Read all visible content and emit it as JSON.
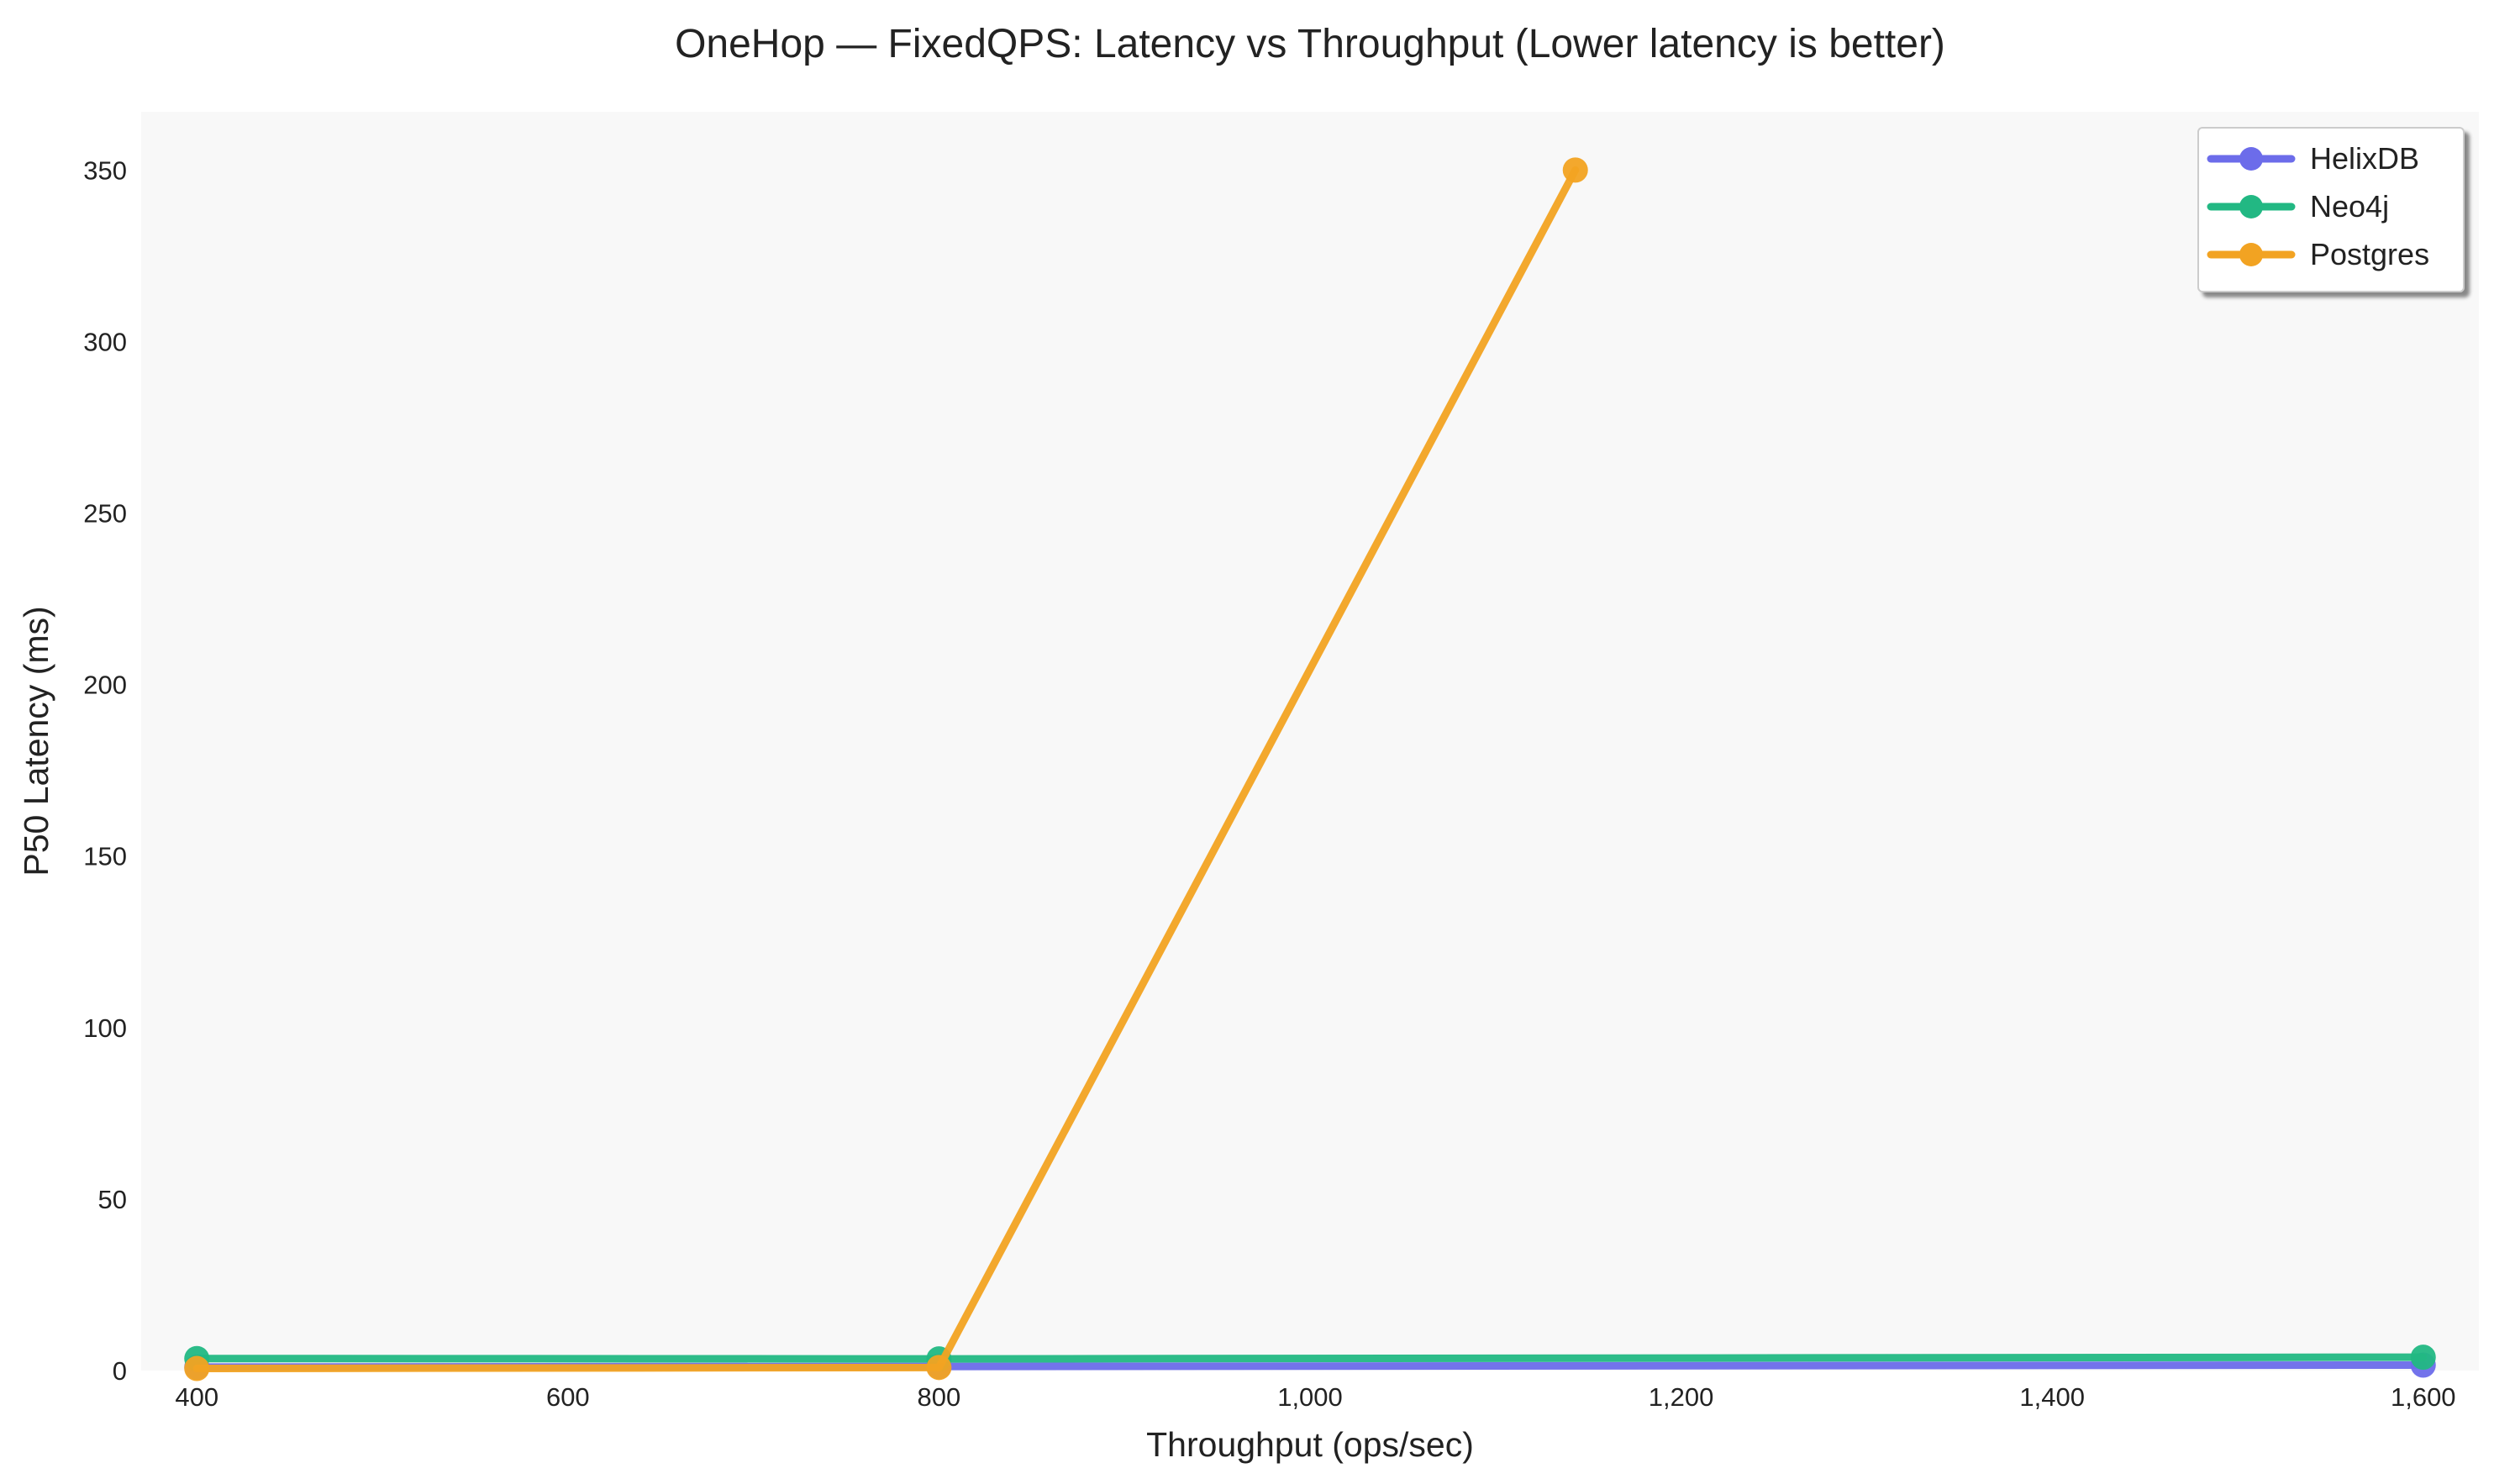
{
  "chart_data": {
    "type": "line",
    "title": "OneHop — FixedQPS: Latency vs Throughput (Lower latency is better)",
    "xlabel": "Throughput (ops/sec)",
    "ylabel": "P50 Latency (ms)",
    "xlim": [
      370,
      1630
    ],
    "ylim": [
      0,
      367
    ],
    "xticks": [
      400,
      600,
      800,
      1000,
      1200,
      1400,
      1600
    ],
    "xtick_labels": [
      "400",
      "600",
      "800",
      "1,000",
      "1,200",
      "1,400",
      "1,600"
    ],
    "yticks": [
      0,
      50,
      100,
      150,
      200,
      250,
      300,
      350
    ],
    "ytick_labels": [
      "0",
      "50",
      "100",
      "150",
      "200",
      "250",
      "300",
      "350"
    ],
    "grid": false,
    "legend_position": "top-right",
    "series": [
      {
        "name": "HelixDB",
        "color": "#6c6cea",
        "x": [
          400,
          800,
          1600
        ],
        "y": [
          1.0,
          1.2,
          1.6
        ]
      },
      {
        "name": "Neo4j",
        "color": "#22b883",
        "x": [
          400,
          800,
          1600
        ],
        "y": [
          3.5,
          3.4,
          3.9
        ]
      },
      {
        "name": "Postgres",
        "color": "#f2a322",
        "x": [
          400,
          800,
          1143
        ],
        "y": [
          0.6,
          0.9,
          350
        ]
      }
    ]
  }
}
